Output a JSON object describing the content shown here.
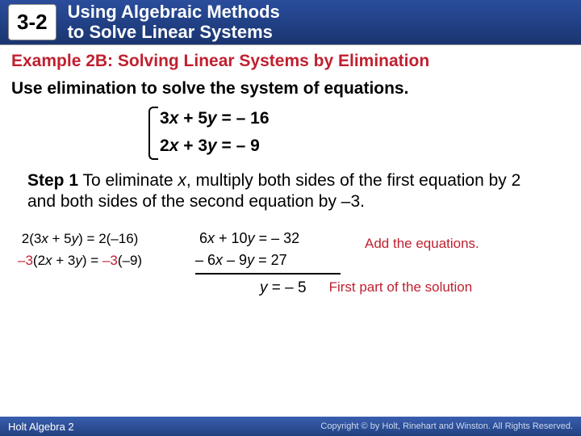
{
  "header": {
    "section_number": "3-2",
    "title_line1": "Using Algebraic Methods",
    "title_line2": "to Solve Linear Systems",
    "bg_gradient_top": "#2a4d9c",
    "bg_gradient_bottom": "#1a3570"
  },
  "example": {
    "title": "Example 2B: Solving Linear Systems by Elimination",
    "title_color": "#c02030",
    "instruction": "Use elimination to solve the system of equations."
  },
  "system": {
    "eq1": {
      "lhs_a": "3",
      "var_a": "x",
      "op": " + ",
      "lhs_b": "5",
      "var_b": "y",
      "eq": " = ",
      "rhs": "– 16"
    },
    "eq2": {
      "lhs_a": "2",
      "var_a": "x",
      "op": " + ",
      "lhs_b": "3",
      "var_b": "y",
      "eq": " = ",
      "rhs": "– 9"
    }
  },
  "step": {
    "label": "Step 1",
    "text_a": " To eliminate ",
    "var": "x",
    "text_b": ", multiply both sides of the first equation by 2 and both sides of the second equation by –3."
  },
  "work": {
    "left1_pre": "2(3",
    "left1_mid": " + 5",
    "left1_post": ") = 2(–16)",
    "left2_pre": "–3",
    "left2_open": "(2",
    "left2_mid": " + 3",
    "left2_close": ") = ",
    "left2_rhs": "–3",
    "left2_end": "(–9)",
    "mid1_a": "6",
    "mid1_b": " + 10",
    "mid1_rhs": " = – 32",
    "mid2_a": "– 6",
    "mid2_b": " –  9",
    "mid2_rhs": "  =  27",
    "note1": "Add the equations."
  },
  "result": {
    "var": "y",
    "eq": " =  ",
    "val": "– 5",
    "note": "First part of the solution"
  },
  "footer": {
    "left": "Holt Algebra 2",
    "right": "Copyright © by Holt, Rinehart and Winston. All Rights Reserved."
  }
}
